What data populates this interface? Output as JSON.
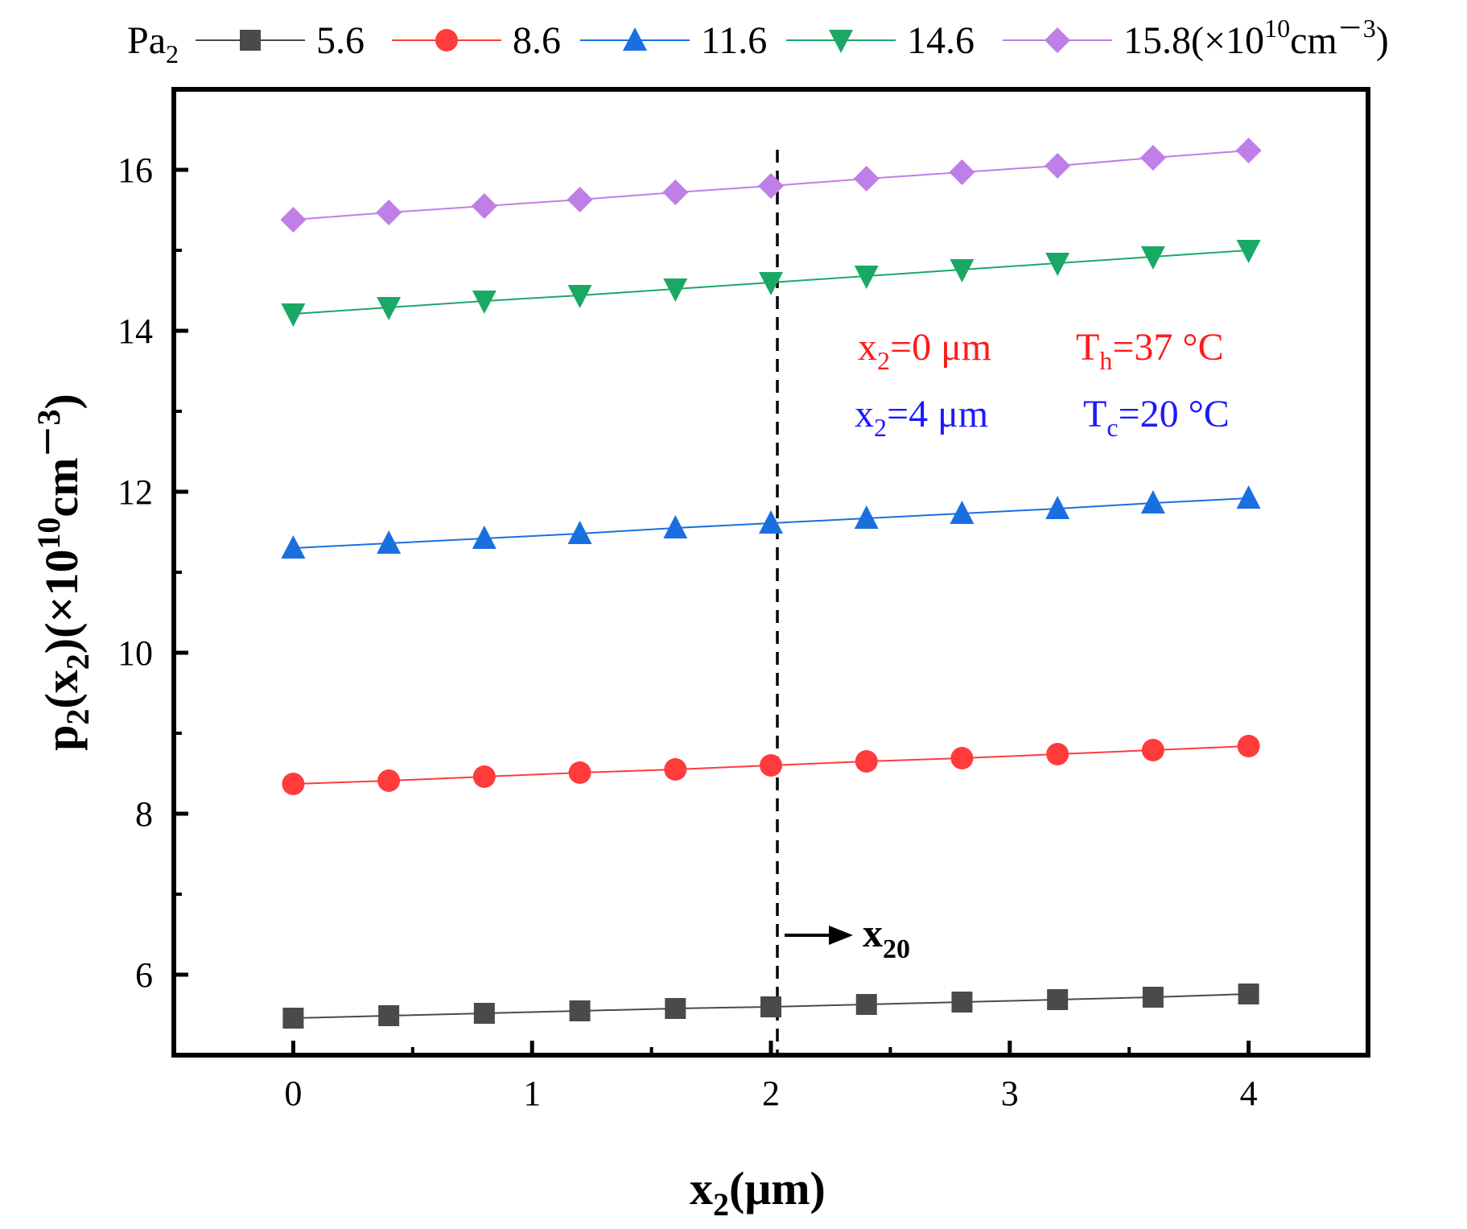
{
  "chart_data": {
    "type": "line",
    "xlabel_main": "x",
    "xlabel_sub": "2",
    "xlabel_unit": "(μm)",
    "ylabel": {
      "p": "p",
      "p_sub": "2",
      "open": "(x",
      "x_sub": "2",
      "close": ")(×10",
      "exp": "10",
      "unit": "cm",
      "unit_exp": "－3",
      "end": ")"
    },
    "xlim": [
      -0.5,
      4.5
    ],
    "ylim": [
      5,
      17
    ],
    "x_ticks": [
      0,
      1,
      2,
      3,
      4
    ],
    "x_tick_labels": [
      "0",
      "1",
      "2",
      "3",
      "4"
    ],
    "y_ticks": [
      6,
      8,
      10,
      12,
      14,
      16
    ],
    "y_tick_labels": [
      "6",
      "8",
      "10",
      "12",
      "14",
      "16"
    ],
    "x": [
      0,
      0.4,
      0.8,
      1.2,
      1.6,
      2.0,
      2.4,
      2.8,
      3.2,
      3.6,
      4.0
    ],
    "series": [
      {
        "name": "5.6",
        "color": "#4a4a4a",
        "marker": "square",
        "values": [
          5.46,
          5.49,
          5.52,
          5.55,
          5.58,
          5.6,
          5.63,
          5.66,
          5.69,
          5.72,
          5.76
        ]
      },
      {
        "name": "8.6",
        "color": "#ff3b3b",
        "marker": "circle",
        "values": [
          8.37,
          8.41,
          8.46,
          8.51,
          8.55,
          8.6,
          8.65,
          8.69,
          8.74,
          8.79,
          8.84
        ]
      },
      {
        "name": "11.6",
        "color": "#1a6fe0",
        "marker": "triangle-up",
        "values": [
          11.3,
          11.36,
          11.42,
          11.48,
          11.55,
          11.61,
          11.67,
          11.73,
          11.79,
          11.86,
          11.92
        ]
      },
      {
        "name": "14.6",
        "color": "#1aa865",
        "marker": "triangle-down",
        "values": [
          14.21,
          14.29,
          14.37,
          14.44,
          14.52,
          14.6,
          14.68,
          14.76,
          14.84,
          14.92,
          15.0
        ]
      },
      {
        "name": "15.8",
        "color": "#bf7fe6",
        "marker": "diamond",
        "values": [
          15.38,
          15.47,
          15.55,
          15.63,
          15.72,
          15.8,
          15.89,
          15.97,
          16.05,
          16.15,
          16.24
        ]
      }
    ],
    "legend": {
      "title_main": "Pa",
      "title_sub": "2",
      "unit_suffix": "(×10",
      "unit_exp": "10",
      "unit_tail": "cm",
      "unit_tail_exp": "－3",
      "unit_close": ")",
      "placement": "top, above plot"
    },
    "vline": {
      "x": 2.0,
      "style": "dashed"
    },
    "annotations": {
      "x20_main": "x",
      "x20_sub": "20",
      "red_left_main": "x",
      "red_left_sub": "2",
      "red_left_rest": "=0 μm",
      "red_right_main": "T",
      "red_right_sub": "h",
      "red_right_rest": "=37 °C",
      "blue_left_main": "x",
      "blue_left_sub": "2",
      "blue_left_rest": "=4 μm",
      "blue_right_main": "T",
      "blue_right_sub": "c",
      "blue_right_rest": "=20 °C",
      "red_color": "#ff1a1a",
      "blue_color": "#1a1aff"
    }
  }
}
